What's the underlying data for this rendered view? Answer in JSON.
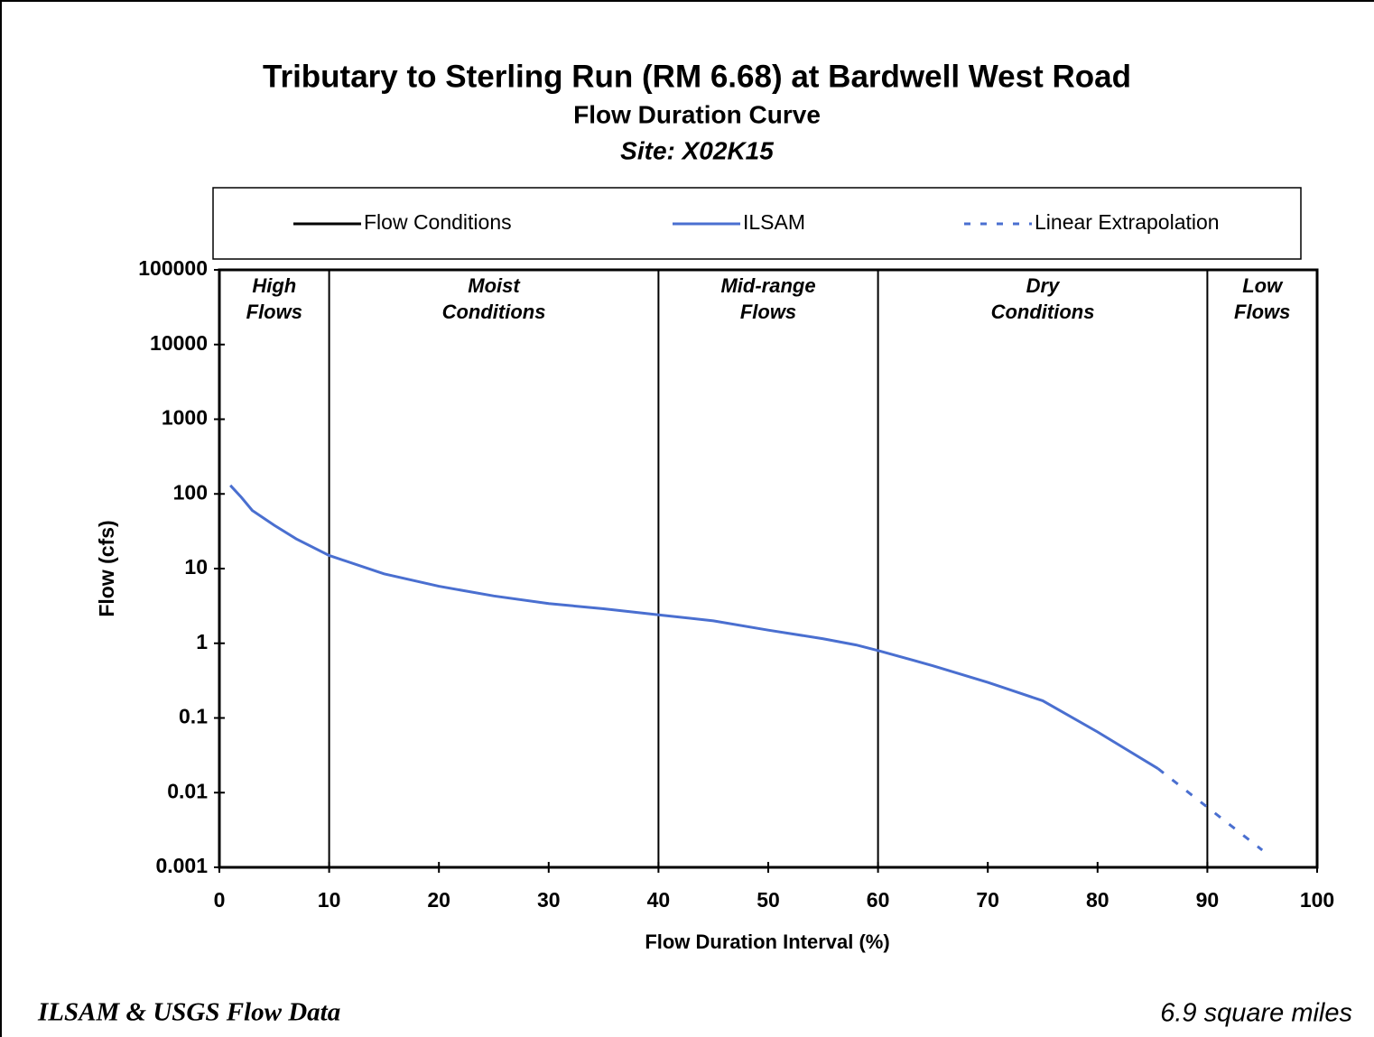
{
  "chart_data": {
    "type": "line",
    "title": "Tributary to Sterling Run (RM 6.68) at Bardwell West Road",
    "subtitle": "Flow Duration Curve",
    "site": "Site:  X02K15",
    "xlabel": "Flow Duration Interval (%)",
    "ylabel": "Flow (cfs)",
    "log": true,
    "xlim": [
      0,
      100
    ],
    "xticks": [
      0,
      10,
      20,
      30,
      40,
      50,
      60,
      70,
      80,
      90,
      100
    ],
    "ylim": [
      0.001,
      100000
    ],
    "yticks": [
      0.001,
      0.01,
      0.1,
      1,
      10,
      100,
      1000,
      10000,
      100000
    ],
    "zones": [
      [
        "High",
        "Flows"
      ],
      [
        "Moist",
        "Conditions"
      ],
      [
        "Mid-range",
        "Flows"
      ],
      [
        "Dry",
        "Conditions"
      ],
      [
        "Low",
        "Flows"
      ]
    ],
    "series": [
      {
        "name": "Flow Conditions",
        "color": "#000000",
        "dash": "solid",
        "boundaries": [
          10,
          40,
          60,
          90
        ]
      },
      {
        "name": "ILSAM",
        "color": "#4a6fd0",
        "dash": "solid",
        "x": [
          1,
          2,
          3,
          5,
          7,
          10,
          15,
          20,
          25,
          30,
          35,
          40,
          45,
          50,
          55,
          58,
          60,
          65,
          70,
          75,
          80,
          85.5
        ],
        "values": [
          130,
          90,
          60,
          38,
          25,
          15,
          8.5,
          5.8,
          4.3,
          3.4,
          2.9,
          2.4,
          2.0,
          1.5,
          1.15,
          0.95,
          0.8,
          0.5,
          0.3,
          0.17,
          0.065,
          0.021
        ]
      },
      {
        "name": "Linear Extrapolation",
        "color": "#4a6fd0",
        "dash": "dashed",
        "x": [
          85.5,
          95
        ],
        "values": [
          0.021,
          0.0017
        ]
      }
    ],
    "footer_left": "ILSAM & USGS Flow Data",
    "footer_right": "6.9 square miles"
  }
}
